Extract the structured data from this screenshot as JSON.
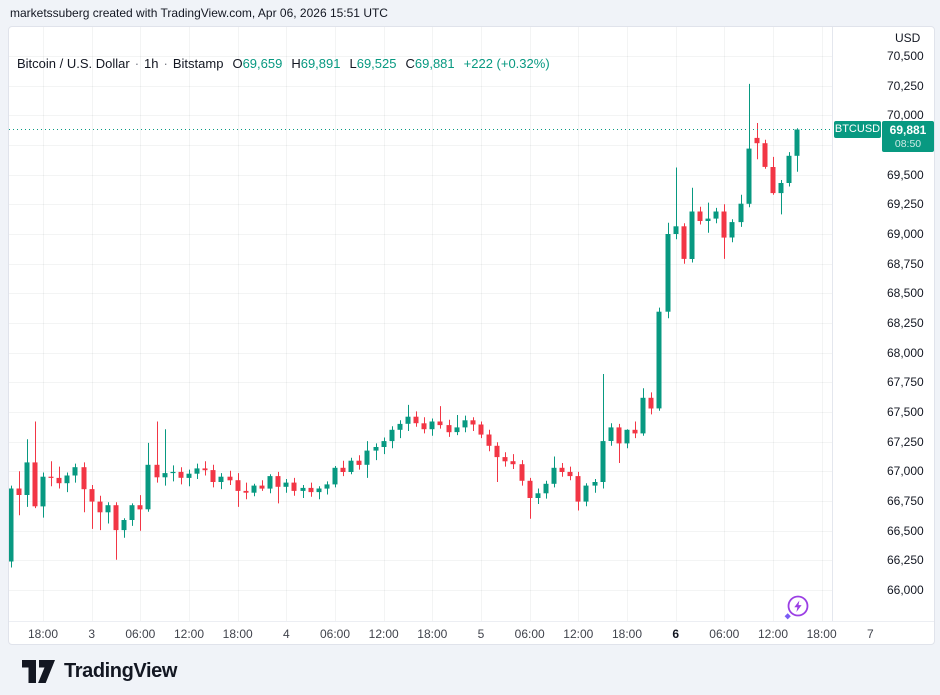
{
  "attribution": {
    "text": "marketssuberg created with TradingView.com, Apr 06, 2026 15:51 UTC"
  },
  "header": {
    "symbol_title": "Bitcoin / U.S. Dollar",
    "dot": "·",
    "interval": "1h",
    "exchange": "Bitstamp",
    "ohlc": {
      "o_label": "O",
      "o_value": "69,659",
      "h_label": "H",
      "h_value": "69,891",
      "l_label": "L",
      "l_value": "69,525",
      "c_label": "C",
      "c_value": "69,881",
      "change": "+222 (+0.32%)"
    }
  },
  "price_axis": {
    "currency": "USD",
    "ticks": [
      "70,500",
      "70,250",
      "70,000",
      "69,750",
      "69,500",
      "69,250",
      "69,000",
      "68,750",
      "68,500",
      "68,250",
      "68,000",
      "67,750",
      "67,500",
      "67,250",
      "67,000",
      "66,750",
      "66,500",
      "66,250",
      "66,000"
    ],
    "badge": {
      "symbol": "BTCUSD",
      "price": "69,881",
      "countdown": "08:50"
    }
  },
  "time_axis": {
    "ticks": [
      {
        "label": "18:00",
        "index": 4,
        "bold": false
      },
      {
        "label": "3",
        "index": 10,
        "bold": false
      },
      {
        "label": "06:00",
        "index": 16,
        "bold": false
      },
      {
        "label": "12:00",
        "index": 22,
        "bold": false
      },
      {
        "label": "18:00",
        "index": 28,
        "bold": false
      },
      {
        "label": "4",
        "index": 34,
        "bold": false
      },
      {
        "label": "06:00",
        "index": 40,
        "bold": false
      },
      {
        "label": "12:00",
        "index": 46,
        "bold": false
      },
      {
        "label": "18:00",
        "index": 52,
        "bold": false
      },
      {
        "label": "5",
        "index": 58,
        "bold": false
      },
      {
        "label": "06:00",
        "index": 64,
        "bold": false
      },
      {
        "label": "12:00",
        "index": 70,
        "bold": false
      },
      {
        "label": "18:00",
        "index": 76,
        "bold": false
      },
      {
        "label": "6",
        "index": 82,
        "bold": true
      },
      {
        "label": "06:00",
        "index": 88,
        "bold": false
      },
      {
        "label": "12:00",
        "index": 94,
        "bold": false
      },
      {
        "label": "18:00",
        "index": 100,
        "bold": false
      },
      {
        "label": "7",
        "index": 106,
        "bold": false
      }
    ]
  },
  "branding": {
    "logo_text": "TradingView"
  },
  "colors": {
    "up": "#089981",
    "down": "#F23645",
    "accent": "#089981",
    "text_dark": "#131722",
    "grid": "rgba(42,46,57,0.055)",
    "badge_bg": "#089981",
    "boost_purple": "#9b3fe4",
    "boost_diamond": "#7a5cf5"
  },
  "chart_data": {
    "type": "candlestick",
    "symbol": "BTCUSD",
    "title": "Bitcoin / U.S. Dollar",
    "interval": "1h",
    "exchange": "Bitstamp",
    "price_axis_range": [
      66000,
      70500
    ],
    "grid_step": 250,
    "last_price": 69881,
    "last_countdown": "08:50",
    "legend_ohlc": {
      "open": 69659,
      "high": 69891,
      "low": 69525,
      "close": 69881,
      "change": 222,
      "change_pct": 0.32
    },
    "candles": [
      [
        "Apr 2 14:00",
        66240,
        66880,
        66190,
        66855
      ],
      [
        "Apr 2 15:00",
        66855,
        67000,
        66630,
        66800
      ],
      [
        "Apr 2 16:00",
        66800,
        67270,
        66700,
        67075
      ],
      [
        "Apr 2 17:00",
        67075,
        67420,
        66690,
        66705
      ],
      [
        "Apr 2 18:00",
        66705,
        66990,
        66610,
        66955
      ],
      [
        "Apr 2 19:00",
        66955,
        67085,
        66875,
        66945
      ],
      [
        "Apr 2 20:00",
        66945,
        67040,
        66855,
        66900
      ],
      [
        "Apr 2 21:00",
        66900,
        66990,
        66825,
        66965
      ],
      [
        "Apr 2 22:00",
        66965,
        67065,
        66905,
        67035
      ],
      [
        "Apr 2 23:00",
        67035,
        67075,
        66655,
        66850
      ],
      [
        "Apr 3 00:00",
        66850,
        66885,
        66515,
        66745
      ],
      [
        "Apr 3 01:00",
        66745,
        66795,
        66505,
        66655
      ],
      [
        "Apr 3 02:00",
        66655,
        66740,
        66560,
        66715
      ],
      [
        "Apr 3 03:00",
        66715,
        66740,
        66255,
        66505
      ],
      [
        "Apr 3 04:00",
        66505,
        66605,
        66440,
        66590
      ],
      [
        "Apr 3 05:00",
        66590,
        66730,
        66540,
        66715
      ],
      [
        "Apr 3 06:00",
        66715,
        66800,
        66500,
        66680
      ],
      [
        "Apr 3 07:00",
        66680,
        67240,
        66660,
        67055
      ],
      [
        "Apr 3 08:00",
        67055,
        67420,
        66905,
        66950
      ],
      [
        "Apr 3 09:00",
        66950,
        67355,
        66880,
        66985
      ],
      [
        "Apr 3 10:00",
        66985,
        67050,
        66915,
        66995
      ],
      [
        "Apr 3 11:00",
        66995,
        67035,
        66890,
        66945
      ],
      [
        "Apr 3 12:00",
        66945,
        67015,
        66875,
        66980
      ],
      [
        "Apr 3 13:00",
        66980,
        67065,
        66935,
        67025
      ],
      [
        "Apr 3 14:00",
        67025,
        67085,
        66965,
        67010
      ],
      [
        "Apr 3 15:00",
        67010,
        67055,
        66865,
        66910
      ],
      [
        "Apr 3 16:00",
        66910,
        66985,
        66850,
        66955
      ],
      [
        "Apr 3 17:00",
        66955,
        67005,
        66885,
        66925
      ],
      [
        "Apr 3 18:00",
        66925,
        66985,
        66700,
        66835
      ],
      [
        "Apr 3 19:00",
        66835,
        66905,
        66765,
        66820
      ],
      [
        "Apr 3 20:00",
        66820,
        66895,
        66790,
        66880
      ],
      [
        "Apr 3 21:00",
        66880,
        66925,
        66835,
        66855
      ],
      [
        "Apr 3 22:00",
        66855,
        66975,
        66815,
        66960
      ],
      [
        "Apr 3 23:00",
        66960,
        66995,
        66730,
        66870
      ],
      [
        "Apr 4 00:00",
        66870,
        66935,
        66820,
        66905
      ],
      [
        "Apr 4 01:00",
        66905,
        66945,
        66795,
        66835
      ],
      [
        "Apr 4 02:00",
        66835,
        66885,
        66775,
        66860
      ],
      [
        "Apr 4 03:00",
        66860,
        66905,
        66785,
        66825
      ],
      [
        "Apr 4 04:00",
        66825,
        66875,
        66765,
        66855
      ],
      [
        "Apr 4 05:00",
        66855,
        66915,
        66805,
        66890
      ],
      [
        "Apr 4 06:00",
        66890,
        67045,
        66865,
        67030
      ],
      [
        "Apr 4 07:00",
        67030,
        67090,
        66960,
        66995
      ],
      [
        "Apr 4 08:00",
        66995,
        67115,
        66975,
        67090
      ],
      [
        "Apr 4 09:00",
        67090,
        67135,
        67015,
        67055
      ],
      [
        "Apr 4 10:00",
        67055,
        67255,
        66945,
        67175
      ],
      [
        "Apr 4 11:00",
        67175,
        67235,
        67095,
        67205
      ],
      [
        "Apr 4 12:00",
        67205,
        67285,
        67145,
        67255
      ],
      [
        "Apr 4 13:00",
        67255,
        67380,
        67195,
        67350
      ],
      [
        "Apr 4 14:00",
        67350,
        67430,
        67280,
        67400
      ],
      [
        "Apr 4 15:00",
        67400,
        67560,
        67340,
        67460
      ],
      [
        "Apr 4 16:00",
        67460,
        67505,
        67375,
        67405
      ],
      [
        "Apr 4 17:00",
        67405,
        67455,
        67320,
        67355
      ],
      [
        "Apr 4 18:00",
        67355,
        67445,
        67300,
        67420
      ],
      [
        "Apr 4 19:00",
        67420,
        67550,
        67360,
        67390
      ],
      [
        "Apr 4 20:00",
        67390,
        67435,
        67290,
        67330
      ],
      [
        "Apr 4 21:00",
        67330,
        67475,
        67305,
        67370
      ],
      [
        "Apr 4 22:00",
        67370,
        67470,
        67330,
        67430
      ],
      [
        "Apr 4 23:00",
        67430,
        67455,
        67340,
        67395
      ],
      [
        "Apr 5 00:00",
        67395,
        67420,
        67280,
        67310
      ],
      [
        "Apr 5 01:00",
        67310,
        67350,
        67170,
        67215
      ],
      [
        "Apr 5 02:00",
        67215,
        67245,
        66910,
        67120
      ],
      [
        "Apr 5 03:00",
        67120,
        67160,
        67040,
        67085
      ],
      [
        "Apr 5 04:00",
        67085,
        67145,
        67020,
        67060
      ],
      [
        "Apr 5 05:00",
        67060,
        67095,
        66880,
        66920
      ],
      [
        "Apr 5 06:00",
        66920,
        66945,
        66600,
        66775
      ],
      [
        "Apr 5 07:00",
        66775,
        66855,
        66725,
        66815
      ],
      [
        "Apr 5 08:00",
        66815,
        66920,
        66770,
        66895
      ],
      [
        "Apr 5 09:00",
        66895,
        67125,
        66865,
        67030
      ],
      [
        "Apr 5 10:00",
        67030,
        67070,
        66955,
        66995
      ],
      [
        "Apr 5 11:00",
        66995,
        67040,
        66925,
        66960
      ],
      [
        "Apr 5 12:00",
        66960,
        66995,
        66670,
        66745
      ],
      [
        "Apr 5 13:00",
        66745,
        66900,
        66705,
        66880
      ],
      [
        "Apr 5 14:00",
        66880,
        66935,
        66820,
        66910
      ],
      [
        "Apr 5 15:00",
        66910,
        67820,
        66855,
        67255
      ],
      [
        "Apr 5 16:00",
        67255,
        67405,
        67215,
        67370
      ],
      [
        "Apr 5 17:00",
        67370,
        67400,
        67070,
        67235
      ],
      [
        "Apr 5 18:00",
        67235,
        67355,
        67195,
        67350
      ],
      [
        "Apr 5 19:00",
        67350,
        67420,
        67280,
        67320
      ],
      [
        "Apr 5 20:00",
        67320,
        67700,
        67300,
        67620
      ],
      [
        "Apr 5 21:00",
        67620,
        67665,
        67480,
        67530
      ],
      [
        "Apr 5 22:00",
        67530,
        68380,
        67510,
        68345
      ],
      [
        "Apr 5 23:00",
        68345,
        69095,
        68290,
        69000
      ],
      [
        "Apr 6 00:00",
        69000,
        69560,
        68955,
        69065
      ],
      [
        "Apr 6 01:00",
        69065,
        69090,
        68750,
        68790
      ],
      [
        "Apr 6 02:00",
        68790,
        69390,
        68760,
        69190
      ],
      [
        "Apr 6 03:00",
        69190,
        69230,
        69080,
        69110
      ],
      [
        "Apr 6 04:00",
        69110,
        69265,
        69010,
        69130
      ],
      [
        "Apr 6 05:00",
        69130,
        69220,
        69090,
        69190
      ],
      [
        "Apr 6 06:00",
        69190,
        69250,
        68790,
        68970
      ],
      [
        "Apr 6 07:00",
        68970,
        69125,
        68930,
        69100
      ],
      [
        "Apr 6 08:00",
        69100,
        69330,
        69060,
        69255
      ],
      [
        "Apr 6 09:00",
        69255,
        70265,
        69225,
        69720
      ],
      [
        "Apr 6 10:00",
        69810,
        69935,
        69630,
        69765
      ],
      [
        "Apr 6 11:00",
        69765,
        69795,
        69550,
        69565
      ],
      [
        "Apr 6 12:00",
        69565,
        69650,
        69330,
        69345
      ],
      [
        "Apr 6 13:00",
        69345,
        69455,
        69165,
        69430
      ],
      [
        "Apr 6 14:00",
        69430,
        69690,
        69400,
        69659
      ],
      [
        "Apr 6 15:00",
        69659,
        69891,
        69525,
        69881
      ]
    ]
  }
}
